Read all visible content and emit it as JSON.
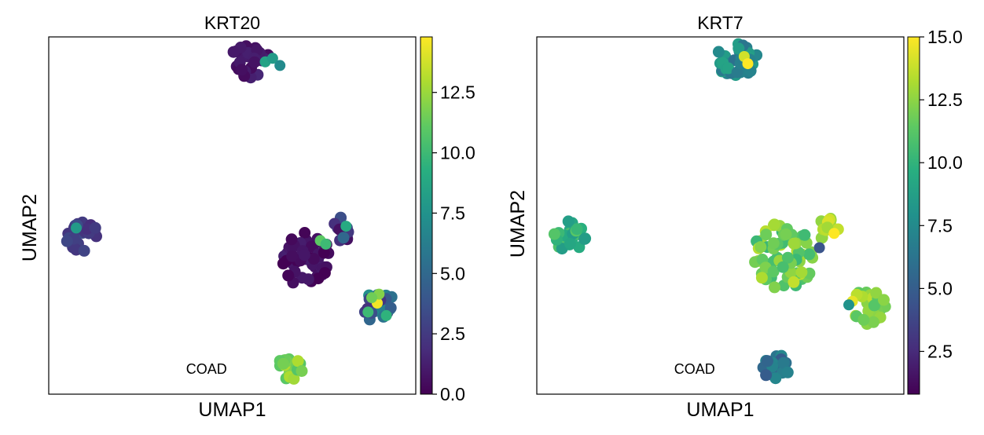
{
  "chart_data": [
    {
      "type": "scatter",
      "title": "KRT20",
      "xlabel": "UMAP1",
      "ylabel": "UMAP2",
      "xlim": [
        0,
        10
      ],
      "ylim": [
        0,
        10
      ],
      "grid": false,
      "colormap": "viridis",
      "colorbar": {
        "range": [
          0,
          14.8
        ],
        "ticks": [
          "0.0",
          "2.5",
          "5.0",
          "7.5",
          "10.0",
          "12.5"
        ],
        "tick_values": [
          0,
          2.5,
          5,
          7.5,
          10,
          12.5
        ]
      },
      "annotations": [
        {
          "text": "COAD",
          "x": 4.3,
          "y": 0.7
        }
      ],
      "clusters": [
        {
          "cx": 5.5,
          "cy": 9.3,
          "rx": 0.65,
          "ry": 0.45,
          "n": 32,
          "base": 1.0,
          "spread": 1.2,
          "seed": 11
        },
        {
          "cx": 0.9,
          "cy": 4.4,
          "rx": 0.45,
          "ry": 0.45,
          "n": 26,
          "base": 2.6,
          "spread": 1.6,
          "seed": 17
        },
        {
          "cx": 7.0,
          "cy": 3.8,
          "rx": 0.65,
          "ry": 0.85,
          "n": 60,
          "base": 0.6,
          "spread": 1.5,
          "seed": 23
        },
        {
          "cx": 7.95,
          "cy": 4.6,
          "rx": 0.3,
          "ry": 0.35,
          "n": 14,
          "base": 3.0,
          "spread": 5.0,
          "seed": 29
        },
        {
          "cx": 9.0,
          "cy": 2.45,
          "rx": 0.45,
          "ry": 0.45,
          "n": 22,
          "base": 4.5,
          "spread": 6.0,
          "seed": 31
        },
        {
          "cx": 6.55,
          "cy": 0.7,
          "rx": 0.4,
          "ry": 0.35,
          "n": 20,
          "base": 12.0,
          "spread": 2.5,
          "seed": 37
        }
      ],
      "highlights": [
        {
          "x": 5.9,
          "y": 9.3,
          "v": 8.5
        },
        {
          "x": 6.1,
          "y": 9.4,
          "v": 8.0
        },
        {
          "x": 6.3,
          "y": 9.2,
          "v": 7.0
        },
        {
          "x": 0.75,
          "y": 4.65,
          "v": 8.0
        },
        {
          "x": 7.4,
          "y": 4.3,
          "v": 11.0
        },
        {
          "x": 7.55,
          "y": 4.2,
          "v": 10.0
        },
        {
          "x": 8.1,
          "y": 4.7,
          "v": 9.0
        },
        {
          "x": 8.95,
          "y": 2.55,
          "v": 14.5
        },
        {
          "x": 8.7,
          "y": 2.3,
          "v": 10.0
        },
        {
          "x": 9.2,
          "y": 2.2,
          "v": 9.5
        },
        {
          "x": 9.0,
          "y": 2.8,
          "v": 12.0
        },
        {
          "x": 8.8,
          "y": 2.7,
          "v": 11.5
        }
      ]
    },
    {
      "type": "scatter",
      "title": "KRT7",
      "xlabel": "UMAP1",
      "ylabel": "UMAP2",
      "xlim": [
        0,
        10
      ],
      "ylim": [
        0,
        10
      ],
      "grid": false,
      "colormap": "viridis",
      "colorbar": {
        "range": [
          0.8,
          15.0
        ],
        "ticks": [
          "2.5",
          "5.0",
          "7.5",
          "10.0",
          "12.5",
          "15.0"
        ],
        "tick_values": [
          2.5,
          5,
          7.5,
          10,
          12.5,
          15
        ]
      },
      "annotations": [
        {
          "text": "COAD",
          "x": 4.3,
          "y": 0.7
        }
      ],
      "clusters": [
        {
          "cx": 5.5,
          "cy": 9.35,
          "rx": 0.65,
          "ry": 0.45,
          "n": 32,
          "base": 7.5,
          "spread": 3.0,
          "seed": 41
        },
        {
          "cx": 0.9,
          "cy": 4.4,
          "rx": 0.45,
          "ry": 0.45,
          "n": 26,
          "base": 10.0,
          "spread": 3.0,
          "seed": 43
        },
        {
          "cx": 6.7,
          "cy": 3.85,
          "rx": 0.85,
          "ry": 0.95,
          "n": 70,
          "base": 12.0,
          "spread": 3.5,
          "seed": 47
        },
        {
          "cx": 7.95,
          "cy": 4.6,
          "rx": 0.3,
          "ry": 0.35,
          "n": 14,
          "base": 13.5,
          "spread": 2.0,
          "seed": 53
        },
        {
          "cx": 9.0,
          "cy": 2.45,
          "rx": 0.5,
          "ry": 0.5,
          "n": 30,
          "base": 12.5,
          "spread": 3.0,
          "seed": 59
        },
        {
          "cx": 6.55,
          "cy": 0.75,
          "rx": 0.4,
          "ry": 0.35,
          "n": 20,
          "base": 6.0,
          "spread": 3.0,
          "seed": 61
        }
      ],
      "highlights": [
        {
          "x": 5.65,
          "y": 9.45,
          "v": 14.0
        },
        {
          "x": 5.75,
          "y": 9.25,
          "v": 15.0
        },
        {
          "x": 7.7,
          "y": 4.1,
          "v": 4.5
        },
        {
          "x": 8.1,
          "y": 4.5,
          "v": 15.0
        },
        {
          "x": 8.6,
          "y": 2.6,
          "v": 14.5
        },
        {
          "x": 8.5,
          "y": 2.5,
          "v": 8.0
        }
      ]
    }
  ]
}
